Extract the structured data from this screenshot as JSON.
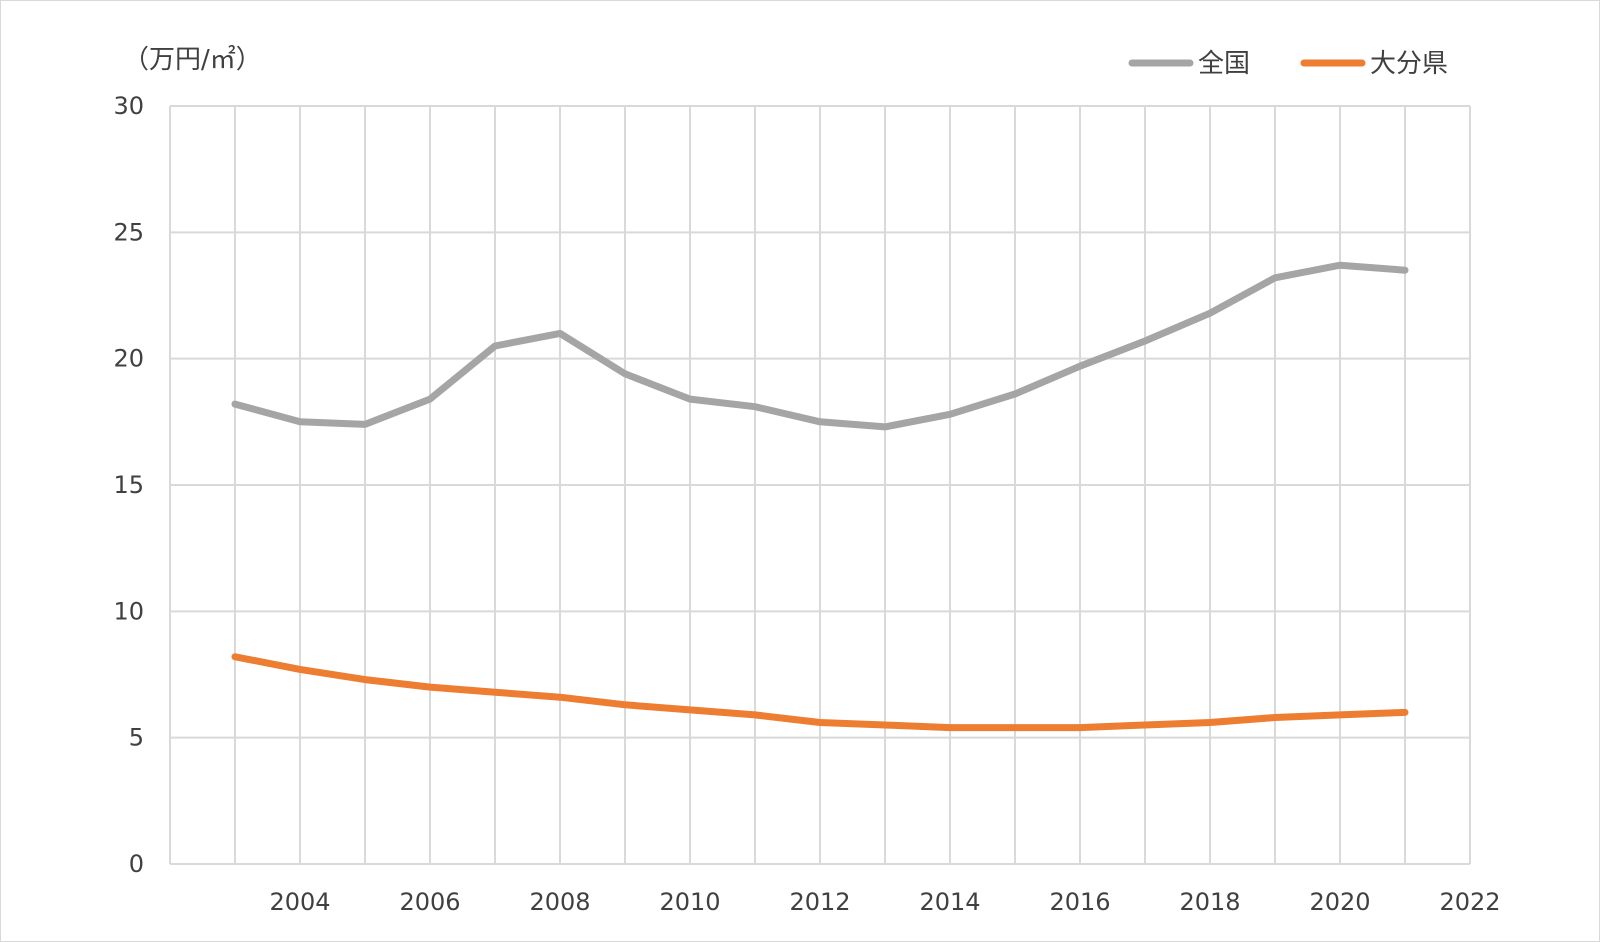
{
  "chart_data": {
    "type": "line",
    "ylabel": "（万円/㎡）",
    "xlim": [
      2002,
      2022
    ],
    "ylim": [
      0,
      30
    ],
    "yticks": [
      0,
      5,
      10,
      15,
      20,
      25,
      30
    ],
    "xticks": [
      2004,
      2006,
      2008,
      2010,
      2012,
      2014,
      2016,
      2018,
      2020,
      2022
    ],
    "grid": true,
    "legend_position": "top-right",
    "x": [
      2003,
      2004,
      2005,
      2006,
      2007,
      2008,
      2009,
      2010,
      2011,
      2012,
      2013,
      2014,
      2015,
      2016,
      2017,
      2018,
      2019,
      2020,
      2021
    ],
    "series": [
      {
        "name": "全国",
        "color": "#a5a5a5",
        "values": [
          18.2,
          17.5,
          17.4,
          18.4,
          20.5,
          21.0,
          19.4,
          18.4,
          18.1,
          17.5,
          17.3,
          17.8,
          18.6,
          19.7,
          20.7,
          21.8,
          23.2,
          23.7,
          23.5
        ]
      },
      {
        "name": "大分県",
        "color": "#ed7d31",
        "values": [
          8.2,
          7.7,
          7.3,
          7.0,
          6.8,
          6.6,
          6.3,
          6.1,
          5.9,
          5.6,
          5.5,
          5.4,
          5.4,
          5.4,
          5.5,
          5.6,
          5.8,
          5.9,
          6.0
        ]
      }
    ]
  }
}
